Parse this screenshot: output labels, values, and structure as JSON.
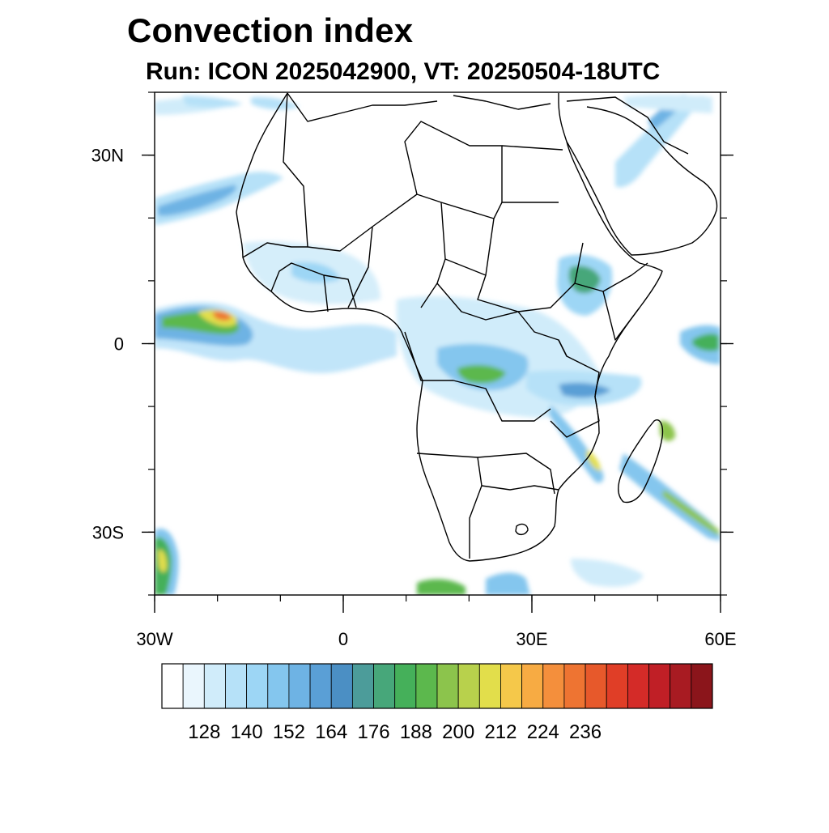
{
  "title": "Convection index",
  "subtitle": "Run: ICON 2025042900,  VT: 20250504-18UTC",
  "axes": {
    "lat_ticks": [
      {
        "value": 30,
        "label": "30N"
      },
      {
        "value": 0,
        "label": "0"
      },
      {
        "value": -30,
        "label": "30S"
      }
    ],
    "lon_ticks": [
      {
        "value": -30,
        "label": "30W"
      },
      {
        "value": 0,
        "label": "0"
      },
      {
        "value": 30,
        "label": "30E"
      },
      {
        "value": 60,
        "label": "60E"
      }
    ],
    "lon_range": [
      -30,
      60
    ],
    "lat_range": [
      -40,
      40
    ]
  },
  "colorbar": {
    "colors": [
      "#ffffff",
      "#eaf6fd",
      "#d0ecfa",
      "#b6e1f8",
      "#9dd6f5",
      "#84c6ee",
      "#6eb3e4",
      "#5a9fd6",
      "#4b8fc4",
      "#4c9c9a",
      "#47a77a",
      "#45b05a",
      "#5cb84d",
      "#8cc44c",
      "#b8d14c",
      "#e2de4b",
      "#f5c84a",
      "#f7ab43",
      "#f48f3c",
      "#ee7432",
      "#e7592b",
      "#e03e27",
      "#d42b28",
      "#c01f26",
      "#a81b22",
      "#8b151b"
    ],
    "labels": [
      "128",
      "140",
      "152",
      "164",
      "176",
      "188",
      "200",
      "212",
      "224",
      "236"
    ],
    "label_start_index": 2,
    "label_step": 2
  },
  "regions": [
    {
      "name": "atlantic-itcz-band",
      "lon": -26,
      "lat": 3,
      "intensity": 0.9
    },
    {
      "name": "gulf-of-guinea-band",
      "lon": -10,
      "lat": -1,
      "intensity": 0.4
    },
    {
      "name": "canary-band",
      "lon": -22,
      "lat": 21,
      "intensity": 0.5
    },
    {
      "name": "congo-basin-cells",
      "lon": 22,
      "lat": -5,
      "intensity": 0.6
    },
    {
      "name": "ethiopia-cells",
      "lon": 38,
      "lat": 10,
      "intensity": 0.5
    },
    {
      "name": "mozambique-channel-band",
      "lon": 42,
      "lat": -18,
      "intensity": 0.5
    },
    {
      "name": "south-atlantic-front",
      "lon": -27,
      "lat": -33,
      "intensity": 0.8
    },
    {
      "name": "indian-ocean-band",
      "lon": 52,
      "lat": -26,
      "intensity": 0.5
    },
    {
      "name": "arabian-band",
      "lon": 46,
      "lat": 30,
      "intensity": 0.3
    }
  ]
}
